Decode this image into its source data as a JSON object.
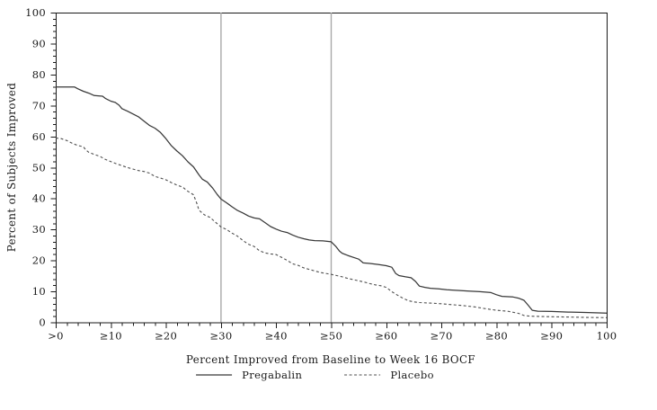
{
  "chart_data": {
    "type": "line",
    "title": "",
    "xlabel": "Percent Improved from Baseline to Week 16 BOCF",
    "ylabel": "Percent of Subjects Improved",
    "xlim": [
      0,
      100
    ],
    "ylim": [
      0,
      100
    ],
    "x_major_tick_values": [
      0,
      10,
      20,
      30,
      40,
      50,
      60,
      70,
      80,
      90,
      100
    ],
    "x_tick_labels": [
      ">0",
      "≥10",
      "≥20",
      "≥30",
      "≥40",
      "≥50",
      "≥60",
      "≥70",
      "≥80",
      "≥90",
      "100"
    ],
    "y_major_tick_values": [
      0,
      10,
      20,
      30,
      40,
      50,
      60,
      70,
      80,
      90,
      100
    ],
    "y_tick_labels": [
      "0",
      "10",
      "20",
      "30",
      "40",
      "50",
      "60",
      "70",
      "80",
      "90",
      "100"
    ],
    "minor_tick_step": 2,
    "grid": false,
    "frame": true,
    "reference_lines_x": [
      30,
      50
    ],
    "reference_line_color": "#a8a8a8",
    "axis_color": "#1a1a1a",
    "legend_position": "bottom",
    "series": [
      {
        "name": "Pregabalin",
        "style": "solid",
        "color": "#383838",
        "points": [
          [
            0,
            76
          ],
          [
            3.4,
            76
          ],
          [
            4,
            75.4
          ],
          [
            5,
            74.6
          ],
          [
            6,
            74
          ],
          [
            7,
            73.2
          ],
          [
            8.5,
            73
          ],
          [
            9,
            72.3
          ],
          [
            10,
            71.4
          ],
          [
            10.8,
            71
          ],
          [
            11.5,
            70.1
          ],
          [
            12,
            69
          ],
          [
            13,
            68.2
          ],
          [
            14,
            67.3
          ],
          [
            15,
            66.4
          ],
          [
            16,
            65
          ],
          [
            17,
            63.6
          ],
          [
            18,
            62.7
          ],
          [
            19,
            61.3
          ],
          [
            20,
            59.3
          ],
          [
            21,
            57
          ],
          [
            22,
            55.3
          ],
          [
            23,
            53.8
          ],
          [
            24,
            51.8
          ],
          [
            25,
            50.2
          ],
          [
            26,
            47.6
          ],
          [
            26.6,
            46.2
          ],
          [
            27.5,
            45.3
          ],
          [
            28.5,
            43.3
          ],
          [
            29.3,
            41.3
          ],
          [
            30,
            39.8
          ],
          [
            31,
            38.6
          ],
          [
            32,
            37.3
          ],
          [
            33,
            36.1
          ],
          [
            34,
            35.3
          ],
          [
            35,
            34.3
          ],
          [
            36,
            33.7
          ],
          [
            37,
            33.4
          ],
          [
            38,
            32.2
          ],
          [
            39,
            30.9
          ],
          [
            40,
            30.1
          ],
          [
            41,
            29.4
          ],
          [
            42,
            29
          ],
          [
            43,
            28.2
          ],
          [
            44,
            27.5
          ],
          [
            45,
            27
          ],
          [
            46,
            26.6
          ],
          [
            47,
            26.4
          ],
          [
            48.5,
            26.3
          ],
          [
            50,
            26
          ],
          [
            50.8,
            24.6
          ],
          [
            51.5,
            23
          ],
          [
            52,
            22.3
          ],
          [
            53,
            21.6
          ],
          [
            54,
            21
          ],
          [
            55,
            20.4
          ],
          [
            55.8,
            19.2
          ],
          [
            57,
            19
          ],
          [
            58.5,
            18.7
          ],
          [
            60,
            18.3
          ],
          [
            61,
            17.8
          ],
          [
            61.7,
            15.8
          ],
          [
            62.3,
            15.1
          ],
          [
            63.5,
            14.7
          ],
          [
            64.5,
            14.4
          ],
          [
            65.3,
            13.2
          ],
          [
            66,
            11.7
          ],
          [
            67,
            11.3
          ],
          [
            68,
            11
          ],
          [
            69.5,
            10.8
          ],
          [
            71,
            10.5
          ],
          [
            73,
            10.3
          ],
          [
            75,
            10.1
          ],
          [
            77,
            9.9
          ],
          [
            79,
            9.6
          ],
          [
            80,
            8.9
          ],
          [
            81,
            8.4
          ],
          [
            83,
            8.2
          ],
          [
            84,
            7.8
          ],
          [
            85,
            7.1
          ],
          [
            85.8,
            5.4
          ],
          [
            86.5,
            3.9
          ],
          [
            87.5,
            3.6
          ],
          [
            90,
            3.5
          ],
          [
            93,
            3.3
          ],
          [
            96,
            3.2
          ],
          [
            100,
            3
          ]
        ]
      },
      {
        "name": "Placebo",
        "style": "dashed",
        "color": "#4e4e4e",
        "points": [
          [
            0,
            59.5
          ],
          [
            1,
            59.3
          ],
          [
            2,
            58.7
          ],
          [
            3,
            57.8
          ],
          [
            4,
            57.1
          ],
          [
            5,
            56.7
          ],
          [
            5.5,
            55.6
          ],
          [
            6,
            54.9
          ],
          [
            7,
            54.2
          ],
          [
            8,
            53.6
          ],
          [
            9,
            52.6
          ],
          [
            10,
            51.9
          ],
          [
            11,
            51.2
          ],
          [
            12,
            50.6
          ],
          [
            13,
            50
          ],
          [
            14,
            49.5
          ],
          [
            15,
            49
          ],
          [
            16,
            48.7
          ],
          [
            17,
            48.2
          ],
          [
            18,
            47.1
          ],
          [
            19,
            46.6
          ],
          [
            20,
            46
          ],
          [
            21,
            45.1
          ],
          [
            22,
            44.3
          ],
          [
            23,
            43.7
          ],
          [
            24,
            42.3
          ],
          [
            25,
            41.2
          ],
          [
            25.6,
            38.5
          ],
          [
            26,
            36.2
          ],
          [
            27,
            34.7
          ],
          [
            28,
            33.9
          ],
          [
            29,
            32.3
          ],
          [
            30,
            30.8
          ],
          [
            31,
            30
          ],
          [
            32,
            28.8
          ],
          [
            33,
            27.8
          ],
          [
            34,
            26.4
          ],
          [
            35,
            25.2
          ],
          [
            36,
            24.5
          ],
          [
            37,
            23.1
          ],
          [
            38,
            22.4
          ],
          [
            39,
            22.1
          ],
          [
            40,
            21.9
          ],
          [
            41,
            21
          ],
          [
            42,
            20
          ],
          [
            43,
            18.9
          ],
          [
            44,
            18.4
          ],
          [
            45,
            17.6
          ],
          [
            46,
            17.1
          ],
          [
            47,
            16.6
          ],
          [
            48,
            16.1
          ],
          [
            49,
            15.8
          ],
          [
            50,
            15.5
          ],
          [
            51,
            15.1
          ],
          [
            52,
            14.7
          ],
          [
            53,
            14.2
          ],
          [
            54,
            13.8
          ],
          [
            55,
            13.4
          ],
          [
            56,
            13
          ],
          [
            57,
            12.5
          ],
          [
            58,
            12.1
          ],
          [
            59,
            11.8
          ],
          [
            60,
            11.3
          ],
          [
            61,
            9.9
          ],
          [
            62,
            8.8
          ],
          [
            63,
            7.8
          ],
          [
            64,
            7
          ],
          [
            65,
            6.6
          ],
          [
            66,
            6.4
          ],
          [
            68,
            6.2
          ],
          [
            70,
            6
          ],
          [
            72,
            5.7
          ],
          [
            74,
            5.4
          ],
          [
            76,
            5
          ],
          [
            78,
            4.4
          ],
          [
            80,
            3.9
          ],
          [
            82,
            3.6
          ],
          [
            84,
            2.9
          ],
          [
            85,
            2.2
          ],
          [
            86,
            2
          ],
          [
            88,
            1.9
          ],
          [
            90,
            1.8
          ],
          [
            93,
            1.7
          ],
          [
            96,
            1.6
          ],
          [
            100,
            1.5
          ]
        ]
      }
    ]
  },
  "legend": {
    "pregabalin_label": "Pregabalin",
    "placebo_label": "Placebo"
  }
}
